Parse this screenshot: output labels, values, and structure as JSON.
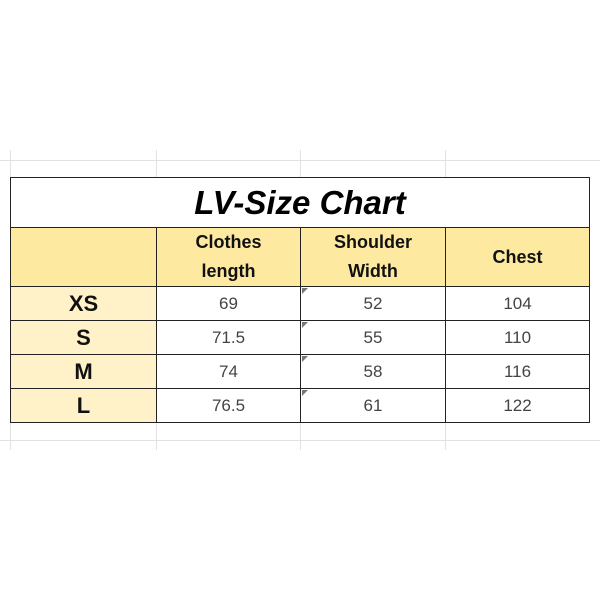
{
  "title": "LV-Size Chart",
  "columns": [
    "",
    "Clothes\nlength",
    "Shoulder\nWidth",
    "Chest"
  ],
  "columns_lines": [
    [
      "Clothes",
      "length"
    ],
    [
      "Shoulder",
      "Width"
    ],
    [
      "Chest"
    ]
  ],
  "rows": [
    {
      "size": "XS",
      "clothes_length": "69",
      "shoulder_width": "52",
      "chest": "104"
    },
    {
      "size": "S",
      "clothes_length": "71.5",
      "shoulder_width": "55",
      "chest": "110"
    },
    {
      "size": "M",
      "clothes_length": "74",
      "shoulder_width": "58",
      "chest": "116"
    },
    {
      "size": "L",
      "clothes_length": "76.5",
      "shoulder_width": "61",
      "chest": "122"
    }
  ],
  "colors": {
    "header_fill": "#fde9a0",
    "size_label_fill": "#fff1c8",
    "border": "#222222"
  }
}
